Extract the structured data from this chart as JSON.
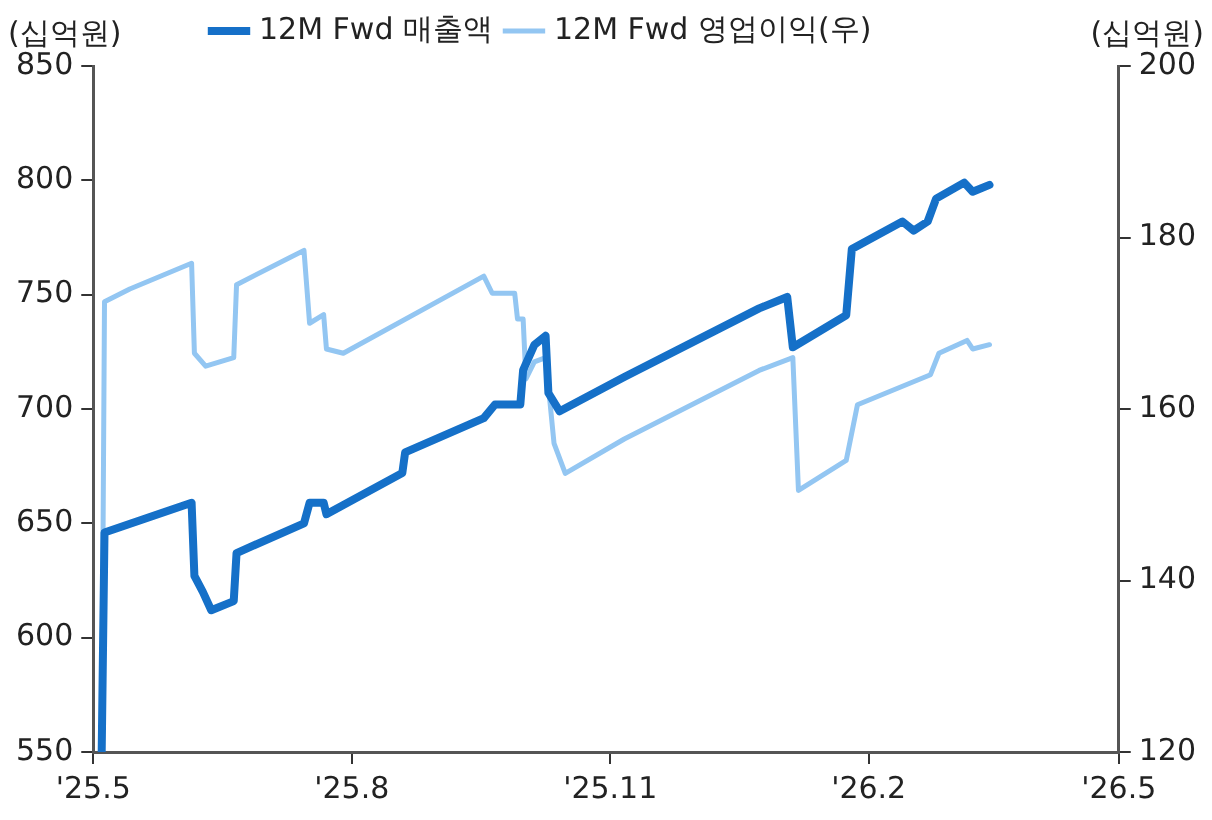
{
  "chart_data": {
    "type": "line",
    "ylabel": "(십억원)",
    "y2label": "(십억원)",
    "xlim": [
      "2025-05-01",
      "2026-05-01"
    ],
    "xticks": [
      {
        "value": "2025-05-01",
        "label": "'25.5"
      },
      {
        "value": "2025-08-01",
        "label": "'25.8"
      },
      {
        "value": "2025-11-01",
        "label": "'25.11"
      },
      {
        "value": "2026-02-01",
        "label": "'26.2"
      },
      {
        "value": "2026-05-01",
        "label": "'26.5"
      }
    ],
    "ylim": [
      550,
      850
    ],
    "yticks": [
      550,
      600,
      650,
      700,
      750,
      800,
      850
    ],
    "y2lim": [
      120,
      200
    ],
    "y2ticks": [
      120,
      140,
      160,
      180,
      200
    ],
    "grid": false,
    "legend": "top left",
    "marker": "none",
    "line_style": "solid",
    "series": [
      {
        "name": "12M Fwd 매출액",
        "color": "#1570c8",
        "x": [
          "2025-05-04",
          "2025-05-05",
          "2025-06-05",
          "2025-06-06",
          "2025-06-09",
          "2025-06-12",
          "2025-06-20",
          "2025-06-21",
          "2025-07-15",
          "2025-07-17",
          "2025-07-22",
          "2025-07-23",
          "2025-08-19",
          "2025-08-20",
          "2025-09-17",
          "2025-09-21",
          "2025-09-30",
          "2025-10-01",
          "2025-10-05",
          "2025-10-09",
          "2025-10-10",
          "2025-10-14",
          "2025-11-06",
          "2025-12-24",
          "2026-01-03",
          "2026-01-05",
          "2026-01-24",
          "2026-01-26",
          "2026-02-13",
          "2026-02-17",
          "2026-02-22",
          "2026-02-25",
          "2026-03-07",
          "2026-03-10",
          "2026-03-16"
        ],
        "values": [
          550,
          646,
          659,
          627,
          620,
          612,
          616,
          637,
          650,
          659,
          659,
          654,
          672,
          681,
          696,
          702,
          702,
          717,
          728,
          732,
          707,
          699,
          714,
          744,
          749,
          727,
          741,
          770,
          782,
          778,
          782,
          792,
          799,
          795,
          798
        ]
      },
      {
        "name": "12M Fwd 영업이익(우)",
        "color": "#93c6f2",
        "axis": "y2",
        "x": [
          "2025-05-04",
          "2025-05-05",
          "2025-05-14",
          "2025-06-05",
          "2025-06-06",
          "2025-06-10",
          "2025-06-20",
          "2025-06-21",
          "2025-07-15",
          "2025-07-17",
          "2025-07-22",
          "2025-07-23",
          "2025-07-29",
          "2025-09-17",
          "2025-09-20",
          "2025-09-28",
          "2025-09-29",
          "2025-10-01",
          "2025-10-02",
          "2025-10-05",
          "2025-10-09",
          "2025-10-12",
          "2025-10-16",
          "2025-11-06",
          "2025-12-24",
          "2026-01-05",
          "2026-01-07",
          "2026-01-24",
          "2026-01-28",
          "2026-02-23",
          "2026-02-26",
          "2026-03-08",
          "2026-03-10",
          "2026-03-16"
        ],
        "values": [
          120,
          172.5,
          174,
          177,
          166.5,
          165,
          166,
          174.5,
          178.5,
          170,
          171,
          167,
          166.5,
          175.5,
          173.5,
          173.5,
          170.5,
          170.5,
          163.5,
          165.5,
          166,
          156,
          152.5,
          156.5,
          164.5,
          166,
          150.5,
          154,
          160.5,
          164,
          166.5,
          168,
          167,
          167.5
        ]
      }
    ]
  }
}
